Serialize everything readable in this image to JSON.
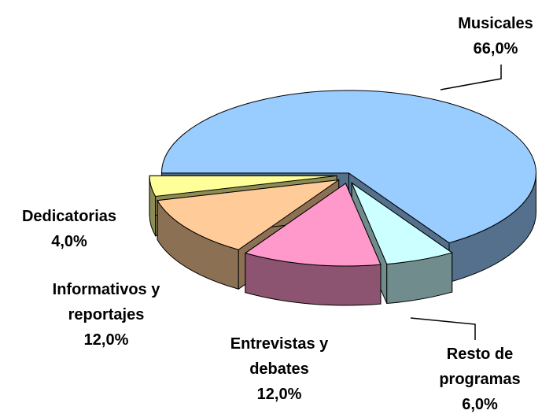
{
  "chart_data": {
    "type": "pie3d",
    "categories": [
      "Musicales",
      "Resto de programas",
      "Entrevistas y debates",
      "Informativos y reportajes",
      "Dedicatorias"
    ],
    "values": [
      66.0,
      6.0,
      12.0,
      12.0,
      4.0
    ],
    "value_labels": [
      "66,0%",
      "6,0%",
      "12,0%",
      "12,0%",
      "4,0%"
    ],
    "colors": [
      "#99ccff",
      "#ccffff",
      "#ff99cc",
      "#ffcc99",
      "#ffff99"
    ]
  }
}
